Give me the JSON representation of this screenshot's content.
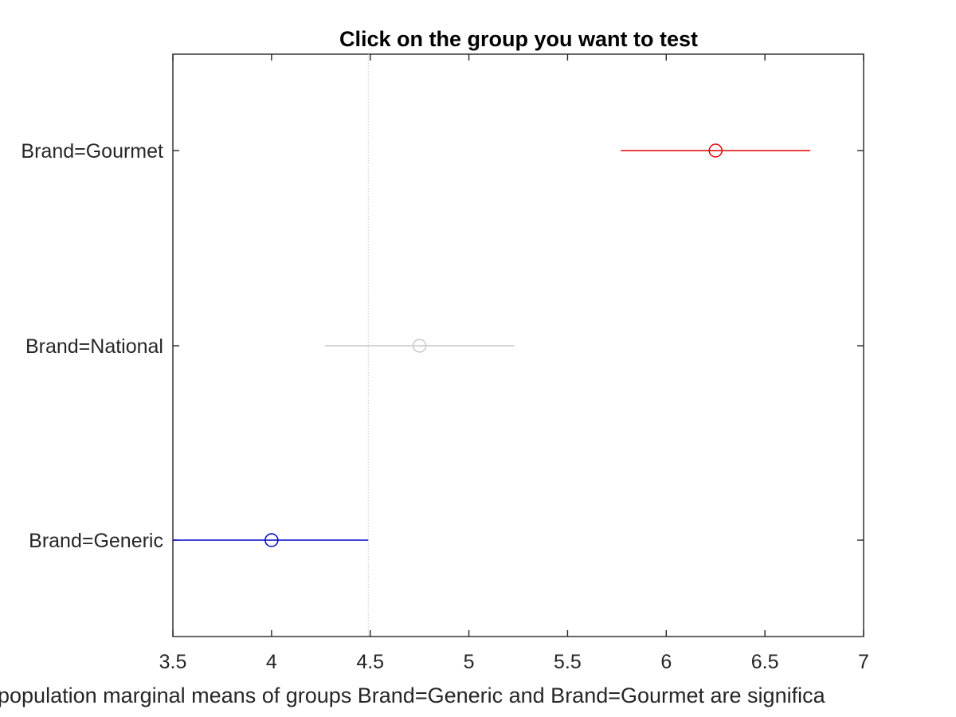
{
  "chart_data": {
    "type": "scatter",
    "subtype": "multiple-comparison-intervals",
    "title": "Click on the group you want to test",
    "xlabel": "population marginal means of groups Brand=Generic and Brand=Gourmet are significa",
    "ylabel": "",
    "xlim": [
      3.5,
      7
    ],
    "x_ticks": [
      3.5,
      4,
      4.5,
      5,
      5.5,
      6,
      6.5,
      7
    ],
    "x_tick_labels": [
      "3.5",
      "4",
      "4.5",
      "5",
      "5.5",
      "6",
      "6.5",
      "7"
    ],
    "categories": [
      "Brand=Generic",
      "Brand=National",
      "Brand=Gourmet"
    ],
    "series": [
      {
        "category": "Brand=Generic",
        "mean": 4.0,
        "lower": 3.5,
        "upper": 4.49,
        "color": "#0000cc"
      },
      {
        "category": "Brand=National",
        "mean": 4.75,
        "lower": 4.27,
        "upper": 5.23,
        "color": "#c8c8c8"
      },
      {
        "category": "Brand=Gourmet",
        "mean": 6.25,
        "lower": 5.77,
        "upper": 6.73,
        "color": "#e00000"
      }
    ],
    "reference_line_x": 4.49,
    "grid": false
  }
}
